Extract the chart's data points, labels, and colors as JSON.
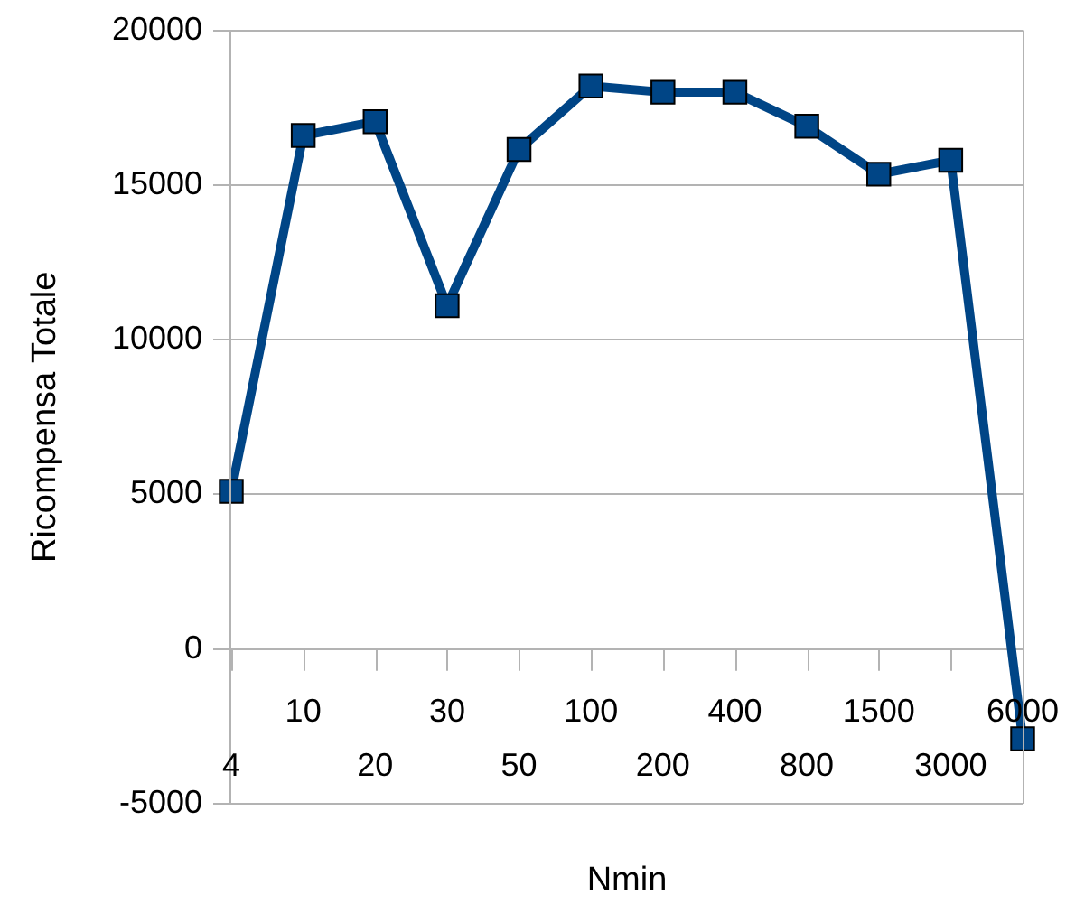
{
  "chart_data": {
    "type": "line",
    "xlabel": "Nmin",
    "ylabel": "Ricompensa Totale",
    "categories": [
      "4",
      "10",
      "20",
      "30",
      "50",
      "100",
      "200",
      "400",
      "800",
      "1500",
      "3000",
      "6000"
    ],
    "series": [
      {
        "color": "#004586",
        "values": [
          5100,
          16600,
          17050,
          11100,
          16150,
          18200,
          18000,
          18000,
          16900,
          15350,
          15800,
          -2900
        ]
      }
    ],
    "ylim": [
      -5000,
      20000
    ],
    "yticks": [
      -5000,
      0,
      5000,
      10000,
      15000,
      20000
    ],
    "grid": "y",
    "legend": false,
    "marker": "square",
    "line_style": "solid"
  }
}
